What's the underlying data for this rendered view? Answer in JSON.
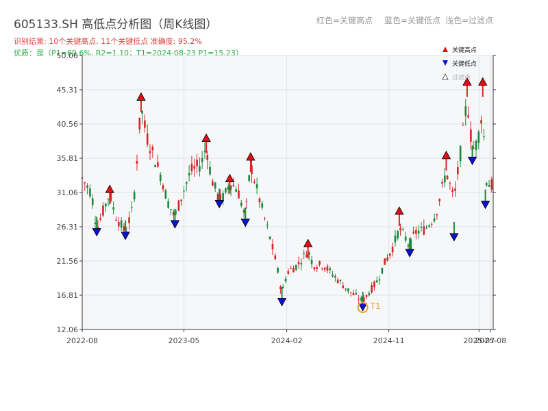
{
  "header": {
    "title": "605133.SH 高低点分析图（周K线图）",
    "result_line": "识别结果: 10个关键高点, 11个关键低点  准确度: 95.2%",
    "quality_line": "优质：是（P1=69.6%, R2=1.10；T1=2024-08-23 P1=15.23）",
    "legend_red": "红色=关键高点",
    "legend_blue": "蓝色=关键低点",
    "legend_filter": "浅色=过滤点"
  },
  "colors": {
    "up": "#d62728",
    "down": "#1a8a3a",
    "high_marker": "#e01010",
    "low_marker": "#1010d0",
    "t1": "#f0a020",
    "plot_bg": "#f6f7f9",
    "grid": "#e0e2e6",
    "axis": "#333333"
  },
  "chart_data": {
    "type": "candlestick",
    "title": "605133.SH 高低点分析图（周K线图）",
    "xlabel": "",
    "ylabel": "",
    "ylim": [
      12.06,
      50.06
    ],
    "yticks": [
      "12.06",
      "16.81",
      "21.56",
      "26.31",
      "31.06",
      "35.81",
      "40.56",
      "45.31",
      "50.06"
    ],
    "xticks": [
      "2022-08",
      "2023-05",
      "2024-02",
      "2024-11",
      "2025-07",
      "2025-08"
    ],
    "x_range": [
      "2022-08-01",
      "2025-08-08"
    ],
    "grid": true,
    "legend_placement": "top-right",
    "legend": [
      {
        "name": "关键高点",
        "marker": "triangle-up",
        "color": "#e01010"
      },
      {
        "name": "关键低点",
        "marker": "triangle-down",
        "color": "#1010d0"
      },
      {
        "name": "过滤点",
        "marker": "triangle-up-hollow",
        "color": "#888888"
      }
    ],
    "key_highs": [
      {
        "date": "2022-10-14",
        "value": 31.5
      },
      {
        "date": "2023-01-06",
        "value": 44.3
      },
      {
        "date": "2023-06-30",
        "value": 38.6
      },
      {
        "date": "2023-09-01",
        "value": 33.0
      },
      {
        "date": "2023-10-27",
        "value": 36.0
      },
      {
        "date": "2024-03-29",
        "value": 24.0
      },
      {
        "date": "2024-11-29",
        "value": 28.5
      },
      {
        "date": "2025-04-04",
        "value": 36.2
      },
      {
        "date": "2025-05-30",
        "value": 46.4
      },
      {
        "date": "2025-07-11",
        "value": 46.4
      }
    ],
    "key_lows": [
      {
        "date": "2022-09-09",
        "value": 25.6
      },
      {
        "date": "2022-11-25",
        "value": 25.1
      },
      {
        "date": "2023-04-07",
        "value": 26.7
      },
      {
        "date": "2023-08-04",
        "value": 29.5
      },
      {
        "date": "2023-10-13",
        "value": 26.9
      },
      {
        "date": "2024-01-19",
        "value": 15.9
      },
      {
        "date": "2024-08-23",
        "value": 15.2
      },
      {
        "date": "2024-12-27",
        "value": 22.7
      },
      {
        "date": "2025-04-25",
        "value": 24.9
      },
      {
        "date": "2025-06-13",
        "value": 35.5
      },
      {
        "date": "2025-07-18",
        "value": 29.4
      }
    ],
    "annotation": {
      "label": "T1",
      "date": "2024-08-23",
      "value": 15.2
    },
    "series": [
      {
        "name": "price",
        "points": [
          [
            "2022-08-01",
            33
          ],
          [
            "2022-08-26",
            31
          ],
          [
            "2022-09-09",
            26
          ],
          [
            "2022-09-23",
            28
          ],
          [
            "2022-10-14",
            31
          ],
          [
            "2022-10-28",
            28
          ],
          [
            "2022-11-25",
            25.5
          ],
          [
            "2022-12-16",
            29
          ],
          [
            "2023-01-06",
            43
          ],
          [
            "2023-01-20",
            39
          ],
          [
            "2023-02-10",
            36
          ],
          [
            "2023-03-03",
            33
          ],
          [
            "2023-03-17",
            30
          ],
          [
            "2023-04-07",
            27.5
          ],
          [
            "2023-04-21",
            30
          ],
          [
            "2023-05-19",
            34
          ],
          [
            "2023-06-16",
            35
          ],
          [
            "2023-06-30",
            37.5
          ],
          [
            "2023-07-14",
            33
          ],
          [
            "2023-08-04",
            30
          ],
          [
            "2023-08-18",
            30.5
          ],
          [
            "2023-09-01",
            32.5
          ],
          [
            "2023-09-22",
            31.5
          ],
          [
            "2023-10-13",
            27.5
          ],
          [
            "2023-10-27",
            35
          ],
          [
            "2023-11-10",
            32
          ],
          [
            "2023-12-01",
            28
          ],
          [
            "2023-12-22",
            24
          ],
          [
            "2024-01-05",
            21
          ],
          [
            "2024-01-19",
            17
          ],
          [
            "2024-02-02",
            20
          ],
          [
            "2024-03-01",
            21
          ],
          [
            "2024-03-29",
            23
          ],
          [
            "2024-04-12",
            21
          ],
          [
            "2024-05-10",
            21
          ],
          [
            "2024-06-07",
            19.5
          ],
          [
            "2024-07-05",
            18
          ],
          [
            "2024-07-26",
            17
          ],
          [
            "2024-08-23",
            16
          ],
          [
            "2024-09-13",
            17.5
          ],
          [
            "2024-10-04",
            19
          ],
          [
            "2024-10-18",
            21
          ],
          [
            "2024-11-08",
            23
          ],
          [
            "2024-11-29",
            26
          ],
          [
            "2024-12-13",
            25
          ],
          [
            "2024-12-27",
            23.5
          ],
          [
            "2025-01-10",
            25.5
          ],
          [
            "2025-02-07",
            26
          ],
          [
            "2025-03-07",
            28
          ],
          [
            "2025-04-04",
            34
          ],
          [
            "2025-04-25",
            30
          ],
          [
            "2025-05-16",
            38
          ],
          [
            "2025-05-30",
            44
          ],
          [
            "2025-06-13",
            37
          ],
          [
            "2025-06-27",
            38
          ],
          [
            "2025-07-11",
            43
          ],
          [
            "2025-07-18",
            33
          ],
          [
            "2025-08-01",
            32
          ]
        ]
      }
    ]
  }
}
